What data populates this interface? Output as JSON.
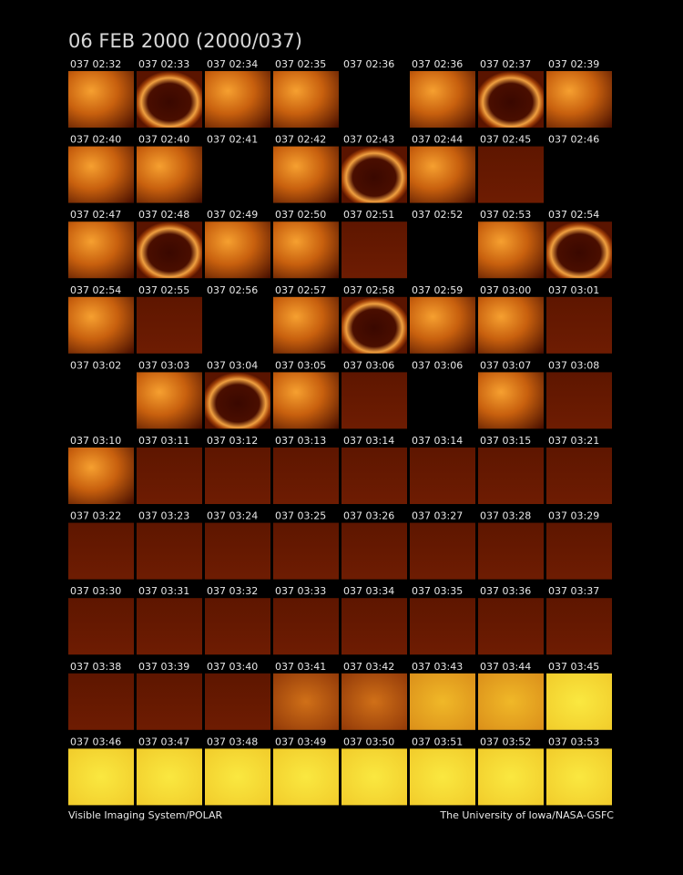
{
  "header": {
    "title": "06 FEB 2000  (2000/037)"
  },
  "panels": [
    "037 02:32",
    "037 02:33",
    "037 02:34",
    "037 02:35",
    "037 02:36",
    "037 02:36",
    "037 02:37",
    "037 02:39",
    "037 02:40",
    "037 02:40",
    "037 02:41",
    "037 02:42",
    "037 02:43",
    "037 02:44",
    "037 02:45",
    "037 02:46",
    "037 02:47",
    "037 02:48",
    "037 02:49",
    "037 02:50",
    "037 02:51",
    "037 02:52",
    "037 02:53",
    "037 02:54",
    "037 02:54",
    "037 02:55",
    "037 02:56",
    "037 02:57",
    "037 02:58",
    "037 02:59",
    "037 03:00",
    "037 03:01",
    "037 03:02",
    "037 03:03",
    "037 03:04",
    "037 03:05",
    "037 03:06",
    "037 03:06",
    "037 03:07",
    "037 03:08",
    "037 03:10",
    "037 03:11",
    "037 03:12",
    "037 03:13",
    "037 03:14",
    "037 03:14",
    "037 03:15",
    "037 03:21",
    "037 03:22",
    "037 03:23",
    "037 03:24",
    "037 03:25",
    "037 03:26",
    "037 03:27",
    "037 03:28",
    "037 03:29",
    "037 03:30",
    "037 03:31",
    "037 03:32",
    "037 03:33",
    "037 03:34",
    "037 03:35",
    "037 03:36",
    "037 03:37",
    "037 03:38",
    "037 03:39",
    "037 03:40",
    "037 03:41",
    "037 03:42",
    "037 03:43",
    "037 03:44",
    "037 03:45",
    "037 03:46",
    "037 03:47",
    "037 03:48",
    "037 03:49",
    "037 03:50",
    "037 03:51",
    "037 03:52",
    "037 03:53"
  ],
  "footer": {
    "left": "Visible Imaging System/POLAR",
    "right": "The University of Iowa/NASA-GSFC"
  }
}
